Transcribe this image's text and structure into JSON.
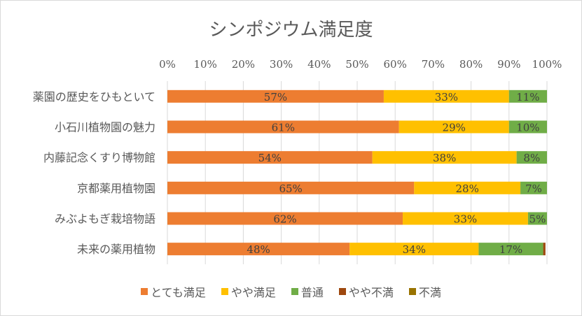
{
  "chart_data": {
    "type": "bar",
    "orientation": "horizontal",
    "stacked": true,
    "percent_stacked": true,
    "title": "シンポジウム満足度",
    "xlabel": "",
    "ylabel": "",
    "xlim": [
      0,
      100
    ],
    "x_ticks": [
      "0%",
      "10%",
      "20%",
      "30%",
      "40%",
      "50%",
      "60%",
      "70%",
      "80%",
      "90%",
      "100%"
    ],
    "x_axis_position": "top",
    "grid": true,
    "legend_position": "bottom",
    "categories": [
      "薬園の歴史をひもといて",
      "小石川植物園の魅力",
      "内藤記念くすり博物館",
      "京都薬用植物園",
      "みぶよもぎ栽培物語",
      "未来の薬用植物"
    ],
    "series": [
      {
        "name": "とても満足",
        "color": "#ed7d31",
        "values": [
          57,
          61,
          54,
          65,
          62,
          48
        ],
        "labels": [
          "57%",
          "61%",
          "54%",
          "65%",
          "62%",
          "48%"
        ]
      },
      {
        "name": "やや満足",
        "color": "#ffc000",
        "values": [
          33,
          29,
          38,
          28,
          33,
          34
        ],
        "labels": [
          "33%",
          "29%",
          "38%",
          "28%",
          "33%",
          "34%"
        ]
      },
      {
        "name": "普通",
        "color": "#70ad47",
        "values": [
          11,
          10,
          8,
          7,
          5,
          17
        ],
        "labels": [
          "11%",
          "10%",
          "8%",
          "7%",
          "5%",
          "17%"
        ]
      },
      {
        "name": "やや不満",
        "color": "#9e480e",
        "values": [
          0,
          0,
          0.5,
          0,
          0,
          0.6
        ],
        "labels": [
          "",
          "",
          "",
          "",
          "",
          ""
        ]
      },
      {
        "name": "不満",
        "color": "#997300",
        "values": [
          0,
          0,
          0,
          0.3,
          0,
          0
        ],
        "labels": [
          "",
          "",
          "",
          "",
          "",
          ""
        ]
      }
    ]
  }
}
